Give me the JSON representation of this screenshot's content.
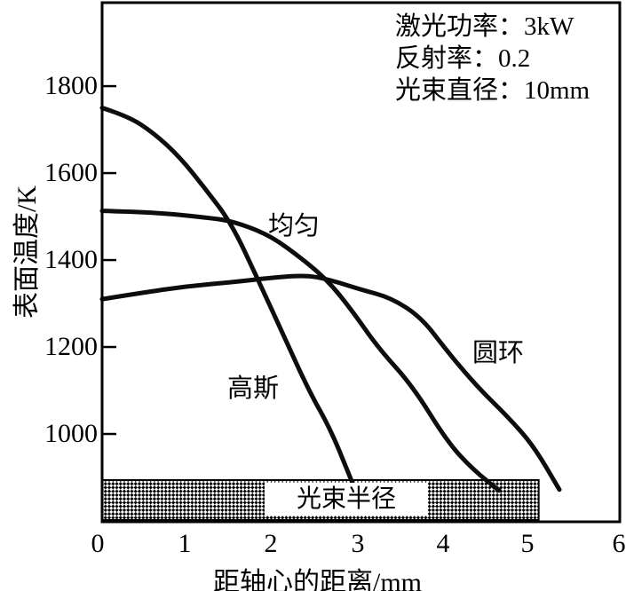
{
  "figure": {
    "background": "#ffffff",
    "ink": "#0d0d0d"
  },
  "chart_data": {
    "type": "line",
    "title": "",
    "xlabel": "距轴心的距离/mm",
    "ylabel": "表面温度/K",
    "xlim": [
      0,
      6
    ],
    "ylim": [
      798,
      1992
    ],
    "xticks": [
      0,
      1,
      2,
      3,
      4,
      5,
      6
    ],
    "xtick_labels": [
      "0",
      "1",
      "2",
      "3",
      "4",
      "5",
      "6"
    ],
    "yticks": [
      1000,
      1200,
      1400,
      1600,
      1800
    ],
    "ytick_labels": [
      "1000",
      "1200",
      "1400",
      "1600",
      "1800"
    ],
    "grid": false,
    "legend_position": "none",
    "annotation_lines": [
      "激光功率：3kW",
      "反射率：0.2",
      "光束直径：10mm"
    ],
    "series": [
      {
        "name": "高斯",
        "points": [
          [
            0,
            1750
          ],
          [
            0.3,
            1731
          ],
          [
            0.6,
            1692
          ],
          [
            0.9,
            1637
          ],
          [
            1.2,
            1563
          ],
          [
            1.5,
            1484
          ],
          [
            1.8,
            1358
          ],
          [
            2.1,
            1228
          ],
          [
            2.4,
            1098
          ],
          [
            2.65,
            1010
          ],
          [
            2.9,
            888
          ]
        ]
      },
      {
        "name": "均匀",
        "points": [
          [
            0,
            1513
          ],
          [
            0.4,
            1511
          ],
          [
            0.8,
            1506
          ],
          [
            1.2,
            1498
          ],
          [
            1.5,
            1490
          ],
          [
            1.9,
            1461
          ],
          [
            2.2,
            1421
          ],
          [
            2.6,
            1357
          ],
          [
            2.9,
            1283
          ],
          [
            3.2,
            1198
          ],
          [
            3.6,
            1110
          ],
          [
            4.0,
            982
          ],
          [
            4.3,
            918
          ],
          [
            4.6,
            870
          ]
        ]
      },
      {
        "name": "圆环",
        "points": [
          [
            0,
            1310
          ],
          [
            0.5,
            1326
          ],
          [
            1.0,
            1340
          ],
          [
            1.5,
            1349
          ],
          [
            2.0,
            1360
          ],
          [
            2.35,
            1365
          ],
          [
            2.6,
            1357
          ],
          [
            3.0,
            1332
          ],
          [
            3.35,
            1313
          ],
          [
            3.7,
            1268
          ],
          [
            4.0,
            1190
          ],
          [
            4.35,
            1108
          ],
          [
            4.7,
            1040
          ],
          [
            5.0,
            973
          ],
          [
            5.3,
            872
          ]
        ]
      }
    ],
    "beam_band": {
      "label": "光束半径",
      "x_range": [
        0,
        5.06
      ],
      "temp_top": 894
    }
  }
}
